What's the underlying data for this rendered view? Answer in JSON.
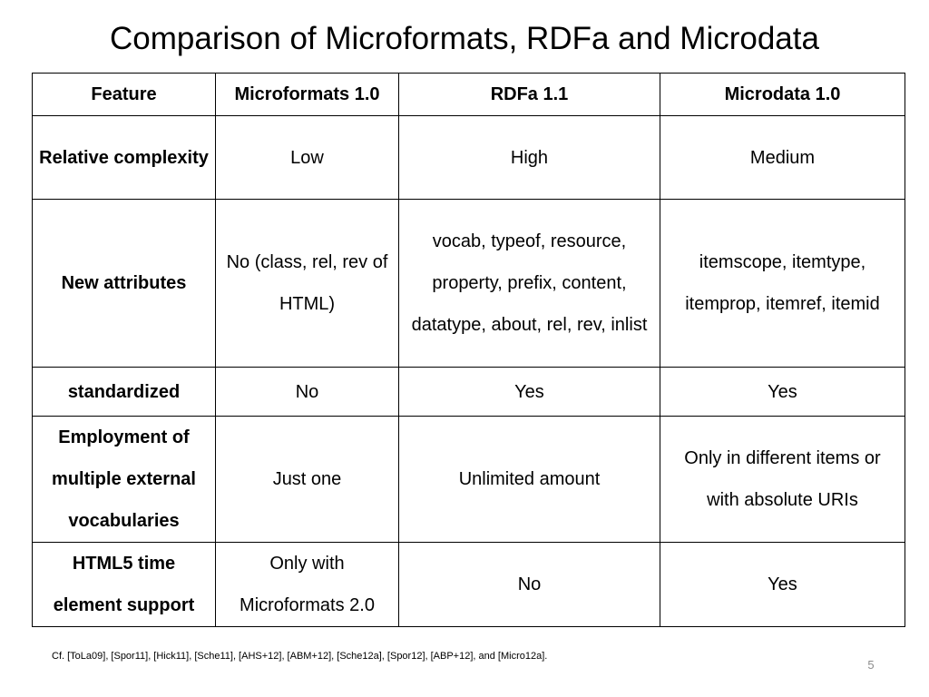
{
  "slide": {
    "title": "Comparison of Microformats, RDFa and Microdata",
    "footnote": "Cf. [ToLa09], [Spor11], [Hick11], [Sche11], [AHS+12], [ABM+12], [Sche12a], [Spor12], [ABP+12], and [Micro12a].",
    "page_number": "5"
  },
  "table": {
    "headers": [
      "Feature",
      "Microformats 1.0",
      "RDFa 1.1",
      "Microdata 1.0"
    ],
    "rows": [
      {
        "feature": "Relative complexity",
        "microformats": "Low",
        "rdfa": "High",
        "microdata": "Medium"
      },
      {
        "feature": "New attributes",
        "microformats": "No (class, rel, rev of HTML)",
        "rdfa": "vocab, typeof, resource, property, prefix, content, datatype, about, rel, rev, inlist",
        "microdata": "itemscope, itemtype, itemprop, itemref, itemid"
      },
      {
        "feature": "standardized",
        "microformats": "No",
        "rdfa": "Yes",
        "microdata": "Yes"
      },
      {
        "feature": "Employment of multiple external vocabularies",
        "microformats": "Just one",
        "rdfa": "Unlimited amount",
        "microdata": "Only in different items or with absolute URIs"
      },
      {
        "feature": "HTML5 time element support",
        "microformats": "Only with Microformats 2.0",
        "rdfa": "No",
        "microdata": "Yes"
      }
    ]
  }
}
